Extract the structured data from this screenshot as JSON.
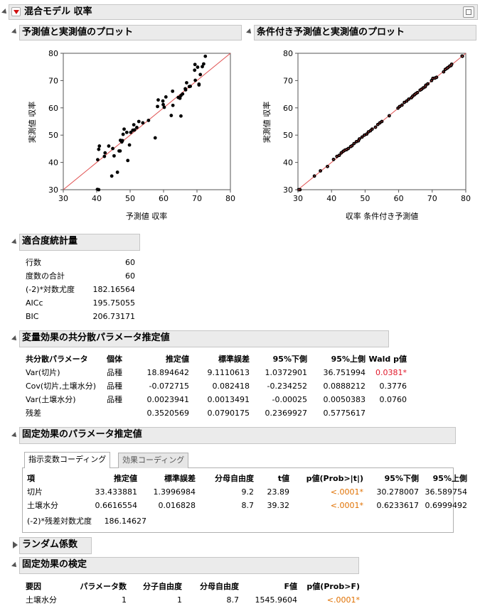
{
  "report": {
    "title": "混合モデル 収率",
    "plot1": {
      "title": "予測値と実測値のプロット",
      "xlabel": "予測値 収率",
      "ylabel": "実測値 収率"
    },
    "plot2": {
      "title": "条件付き予測値と実測値のプロット",
      "xlabel": "収率 条件付き予測値",
      "ylabel": "実測値 収率"
    }
  },
  "chart_data": [
    {
      "type": "scatter",
      "xlabel": "予測値 収率",
      "ylabel": "実測値 収率",
      "xlim": [
        30,
        80
      ],
      "ylim": [
        30,
        80
      ],
      "ticks": [
        "30",
        "40",
        "50",
        "60",
        "70",
        "80"
      ],
      "reference_line": "y = x",
      "points": [
        [
          40.2,
          30.1
        ],
        [
          40.6,
          30.0
        ],
        [
          40.3,
          41.0
        ],
        [
          40.6,
          44.8
        ],
        [
          40.8,
          46.0
        ],
        [
          42.3,
          42.2
        ],
        [
          42.5,
          43.5
        ],
        [
          43.6,
          46.0
        ],
        [
          44.5,
          35.0
        ],
        [
          44.8,
          45.1
        ],
        [
          45.2,
          42.4
        ],
        [
          46.2,
          36.4
        ],
        [
          46.7,
          44.2
        ],
        [
          47.0,
          44.2
        ],
        [
          47.1,
          48.1
        ],
        [
          47.5,
          47.5
        ],
        [
          47.7,
          48.0
        ],
        [
          47.9,
          50.3
        ],
        [
          48.2,
          52.2
        ],
        [
          49.0,
          51.0
        ],
        [
          49.3,
          40.7
        ],
        [
          49.8,
          46.4
        ],
        [
          50.2,
          51.0
        ],
        [
          50.8,
          51.8
        ],
        [
          51.1,
          53.8
        ],
        [
          51.3,
          51.9
        ],
        [
          52.0,
          52.8
        ],
        [
          52.6,
          55.0
        ],
        [
          53.8,
          54.5
        ],
        [
          55.5,
          55.4
        ],
        [
          57.5,
          49.0
        ],
        [
          58.2,
          60.5
        ],
        [
          58.4,
          62.9
        ],
        [
          59.8,
          62.5
        ],
        [
          59.9,
          61.2
        ],
        [
          60.2,
          60.2
        ],
        [
          60.7,
          64.0
        ],
        [
          62.3,
          57.2
        ],
        [
          62.7,
          66.1
        ],
        [
          62.8,
          60.9
        ],
        [
          64.4,
          63.8
        ],
        [
          64.9,
          63.5
        ],
        [
          65.2,
          57.0
        ],
        [
          65.2,
          64.5
        ],
        [
          65.7,
          65.1
        ],
        [
          66.5,
          67.0
        ],
        [
          66.6,
          66.6
        ],
        [
          66.9,
          69.2
        ],
        [
          67.7,
          67.8
        ],
        [
          68.0,
          67.9
        ],
        [
          69.3,
          73.8
        ],
        [
          69.4,
          75.9
        ],
        [
          69.5,
          70.1
        ],
        [
          70.2,
          74.9
        ],
        [
          70.6,
          68.4
        ],
        [
          70.6,
          68.7
        ],
        [
          71.0,
          72.2
        ],
        [
          71.6,
          75.1
        ],
        [
          72.0,
          76.1
        ],
        [
          72.5,
          78.9
        ]
      ]
    },
    {
      "type": "scatter",
      "xlabel": "収率 条件付き予測値",
      "ylabel": "実測値 収率",
      "xlim": [
        30,
        80
      ],
      "ylim": [
        30,
        80
      ],
      "ticks": [
        "30",
        "40",
        "50",
        "60",
        "70",
        "80"
      ],
      "reference_line": "y = x",
      "points": [
        [
          30.2,
          30.0
        ],
        [
          30.6,
          30.0
        ],
        [
          34.9,
          35.0
        ],
        [
          36.7,
          36.9
        ],
        [
          40.6,
          41.1
        ],
        [
          41.6,
          42.2
        ],
        [
          42.9,
          43.5
        ],
        [
          43.5,
          44.1
        ],
        [
          44.0,
          44.5
        ],
        [
          44.5,
          44.7
        ],
        [
          45.0,
          45.1
        ],
        [
          45.7,
          45.8
        ],
        [
          46.1,
          46.1
        ],
        [
          46.7,
          46.9
        ],
        [
          47.4,
          47.6
        ],
        [
          48.0,
          47.9
        ],
        [
          48.3,
          48.6
        ],
        [
          49.1,
          49.3
        ],
        [
          49.8,
          50.0
        ],
        [
          50.5,
          50.4
        ],
        [
          51.0,
          51.2
        ],
        [
          51.6,
          51.6
        ],
        [
          52.1,
          52.2
        ],
        [
          53.1,
          52.9
        ],
        [
          53.8,
          53.9
        ],
        [
          54.4,
          54.5
        ],
        [
          55.0,
          55.0
        ],
        [
          57.2,
          57.1
        ],
        [
          59.8,
          59.9
        ],
        [
          60.3,
          60.5
        ],
        [
          61.0,
          61.0
        ],
        [
          61.7,
          62.0
        ],
        [
          62.4,
          62.5
        ],
        [
          63.0,
          63.2
        ],
        [
          63.8,
          63.7
        ],
        [
          64.2,
          64.3
        ],
        [
          64.7,
          64.8
        ],
        [
          65.1,
          65.2
        ],
        [
          65.6,
          65.6
        ],
        [
          66.4,
          66.5
        ],
        [
          66.8,
          66.8
        ],
        [
          67.3,
          67.3
        ],
        [
          67.9,
          67.7
        ],
        [
          68.1,
          68.3
        ],
        [
          68.7,
          68.8
        ],
        [
          69.8,
          70.0
        ],
        [
          70.2,
          70.8
        ],
        [
          70.8,
          70.9
        ],
        [
          71.3,
          71.2
        ],
        [
          73.4,
          73.2
        ],
        [
          73.9,
          74.1
        ],
        [
          74.4,
          74.5
        ],
        [
          74.7,
          74.8
        ],
        [
          75.2,
          75.3
        ],
        [
          75.6,
          75.5
        ],
        [
          75.8,
          76.0
        ],
        [
          79.0,
          78.9
        ],
        [
          78.9,
          79.0
        ],
        [
          38.8,
          38.5
        ],
        [
          42.3,
          42.6
        ]
      ]
    }
  ],
  "fit_stats": {
    "title": "適合度統計量",
    "rows": [
      {
        "label": "行数",
        "value": "60"
      },
      {
        "label": "度数の合計",
        "value": "60"
      },
      {
        "label": "(-2)*対数尤度",
        "value": "182.16564"
      },
      {
        "label": "AICc",
        "value": "195.75055"
      },
      {
        "label": "BIC",
        "value": "206.73171"
      }
    ]
  },
  "cov_params": {
    "title": "変量効果の共分散パラメータ推定値",
    "headers": [
      "共分散パラメータ",
      "個体",
      "推定値",
      "標準誤差",
      "95%下側",
      "95%上側",
      "Wald p値"
    ],
    "rows": [
      [
        "Var(切片)",
        "品種",
        "18.894642",
        "9.1110613",
        "1.0372901",
        "36.751994",
        "0.0381*"
      ],
      [
        "Cov(切片,土壌水分)",
        "品種",
        "-0.072715",
        "0.082418",
        "-0.234252",
        "0.0888212",
        "0.3776"
      ],
      [
        "Var(土壌水分)",
        "品種",
        "0.0023941",
        "0.0013491",
        "-0.00025",
        "0.0050383",
        "0.0760"
      ],
      [
        "残差",
        "",
        "0.3520569",
        "0.0790175",
        "0.2369927",
        "0.5775617",
        ""
      ]
    ],
    "pcolor": "#e0182a"
  },
  "fixed_params": {
    "title": "固定効果のパラメータ推定値",
    "tabs": [
      "指示変数コーディング",
      "効果コーディング"
    ],
    "headers": [
      "項",
      "推定値",
      "標準誤差",
      "分母自由度",
      "t値",
      "p値(Prob>|t|)",
      "95%下側",
      "95%上側"
    ],
    "rows": [
      [
        "切片",
        "33.433881",
        "1.3996984",
        "9.2",
        "23.89",
        "<.0001*",
        "30.278007",
        "36.589754"
      ],
      [
        "土壌水分",
        "0.6616554",
        "0.016828",
        "8.7",
        "39.32",
        "<.0001*",
        "0.6233617",
        "0.6999492"
      ]
    ],
    "residual_label": "(-2)*残差対数尤度",
    "residual_value": "186.14627",
    "pcolor": "#e07000"
  },
  "random_coef": {
    "title": "ランダム係数"
  },
  "fixed_tests": {
    "title": "固定効果の検定",
    "headers": [
      "要因",
      "パラメータ数",
      "分子自由度",
      "分母自由度",
      "F値",
      "p値(Prob>F)"
    ],
    "rows": [
      [
        "土壌水分",
        "1",
        "1",
        "8.7",
        "1545.9604",
        "<.0001*"
      ]
    ]
  }
}
